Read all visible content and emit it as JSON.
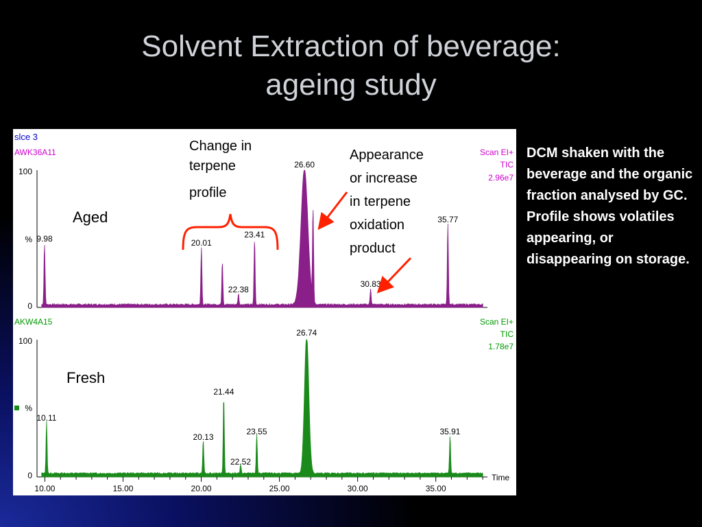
{
  "slide": {
    "title_line1": "Solvent Extraction of beverage:",
    "title_line2": "ageing study",
    "side_text": "DCM shaken with the beverage and the organic fraction analysed by GC. Profile shows volatiles appearing, or disappearing on storage."
  },
  "colors": {
    "aged": "#8a1f8a",
    "fresh": "#1a8a1a",
    "annotation": "#ff2000",
    "axis": "#000000",
    "header_blue": "#0000cc",
    "label_magenta": "#cc00cc",
    "label_green": "#009900"
  },
  "annotations": {
    "terpene_change": [
      "Change in",
      "terpene",
      "profile"
    ],
    "oxidation": [
      "Appearance",
      "or increase",
      "in terpene",
      "oxidation",
      "product"
    ],
    "aged": "Aged",
    "fresh": "Fresh"
  },
  "chart_data": [
    {
      "type": "line",
      "header": "slce 3",
      "sample": "AWK36A11",
      "scan_info": [
        "Scan EI+",
        "TIC",
        "2.96e7"
      ],
      "y_ticks": [
        "100",
        "%",
        "0"
      ],
      "ylim": [
        0,
        100
      ],
      "xlim": [
        9.5,
        38.3
      ],
      "baseline": 1.5,
      "peaks": [
        {
          "x": 9.98,
          "y": 45,
          "label": "9.98"
        },
        {
          "x": 20.01,
          "y": 42,
          "label": "20.01"
        },
        {
          "x": 21.35,
          "y": 32,
          "label": ""
        },
        {
          "x": 22.38,
          "y": 8,
          "label": "22.38"
        },
        {
          "x": 23.41,
          "y": 48,
          "label": "23.41"
        },
        {
          "x": 26.6,
          "y": 99,
          "label": "26.60"
        },
        {
          "x": 27.15,
          "y": 67,
          "label": ""
        },
        {
          "x": 30.83,
          "y": 12,
          "label": "30.83"
        },
        {
          "x": 35.77,
          "y": 59,
          "label": "35.77"
        }
      ]
    },
    {
      "type": "line",
      "sample": "AKW4A15",
      "scan_info": [
        "Scan EI+",
        "TIC",
        "1.78e7"
      ],
      "y_ticks": [
        "100",
        "%",
        "0"
      ],
      "ylim": [
        0,
        100
      ],
      "xlim": [
        9.5,
        38.3
      ],
      "baseline": 2,
      "xlabel": "Time",
      "x_ticks": [
        10.0,
        15.0,
        20.0,
        25.0,
        30.0,
        35.0
      ],
      "x_tick_labels": [
        "10.00",
        "15.00",
        "20.00",
        "25.00",
        "30.00",
        "35.00"
      ],
      "peaks": [
        {
          "x": 10.11,
          "y": 38,
          "label": "10.11"
        },
        {
          "x": 20.13,
          "y": 24,
          "label": "20.13"
        },
        {
          "x": 21.44,
          "y": 57,
          "label": "21.44"
        },
        {
          "x": 22.52,
          "y": 6,
          "label": "22.52"
        },
        {
          "x": 23.55,
          "y": 28,
          "label": "23.55"
        },
        {
          "x": 26.74,
          "y": 100,
          "label": "26.74"
        },
        {
          "x": 35.91,
          "y": 28,
          "label": "35.91"
        }
      ]
    }
  ]
}
